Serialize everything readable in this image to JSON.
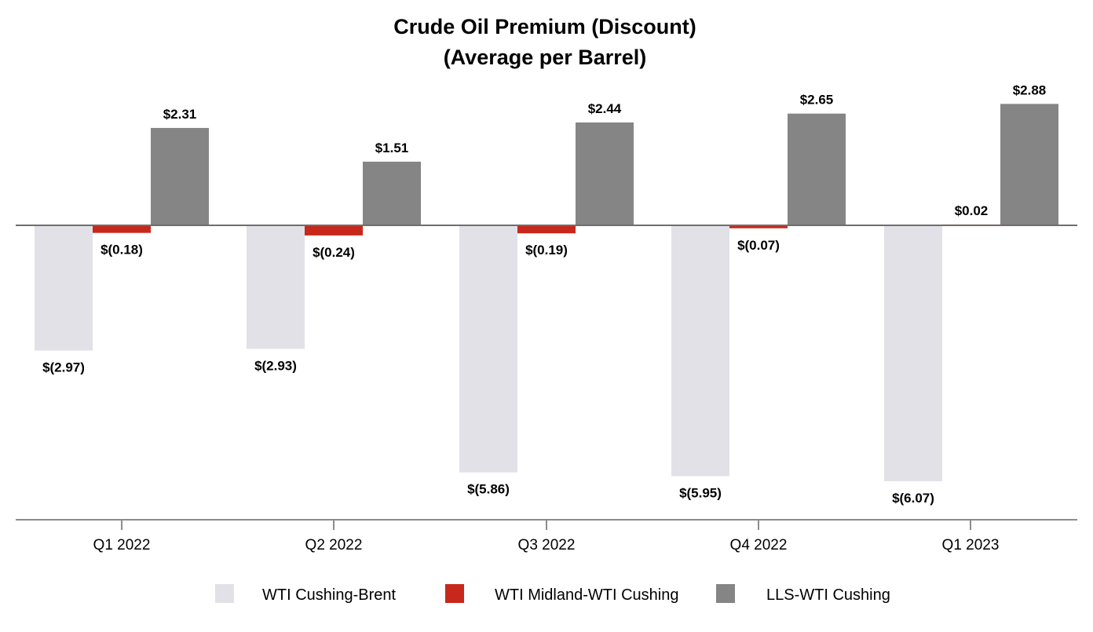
{
  "chart_data": {
    "type": "bar",
    "title": "Crude Oil Premium (Discount)",
    "subtitle": "(Average per Barrel)",
    "xlabel": "",
    "ylabel": "",
    "ylim": [
      -6.6,
      3.0
    ],
    "grid": false,
    "legend_position": "bottom",
    "categories": [
      "Q1 2022",
      "Q2 2022",
      "Q3 2022",
      "Q4 2022",
      "Q1 2023"
    ],
    "series": [
      {
        "name": "WTI Cushing-Brent",
        "color": "#e1e1e7",
        "values": [
          -2.97,
          -2.93,
          -5.86,
          -5.95,
          -6.07
        ],
        "labels": [
          "$(2.97)",
          "$(2.93)",
          "$(5.86)",
          "$(5.95)",
          "$(6.07)"
        ]
      },
      {
        "name": "WTI Midland-WTI Cushing",
        "color": "#c7281b",
        "values": [
          -0.18,
          -0.24,
          -0.19,
          -0.07,
          0.02
        ],
        "labels": [
          "$(0.18)",
          "$(0.24)",
          "$(0.19)",
          "$(0.07)",
          "$0.02"
        ]
      },
      {
        "name": "LLS-WTI Cushing",
        "color": "#858585",
        "values": [
          2.31,
          1.51,
          2.44,
          2.65,
          2.88
        ],
        "labels": [
          "$2.31",
          "$1.51",
          "$2.44",
          "$2.65",
          "$2.88"
        ]
      }
    ],
    "axis_color": "#8c8c8c"
  }
}
